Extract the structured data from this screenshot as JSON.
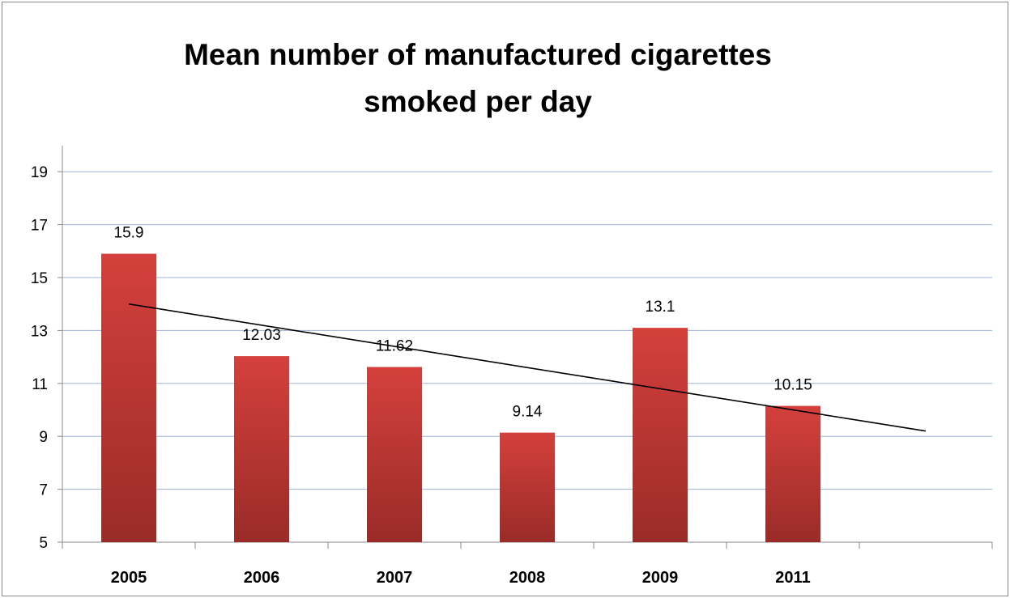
{
  "chart_data": {
    "type": "bar",
    "title_lines": [
      "Mean number of manufactured cigarettes",
      "smoked per day"
    ],
    "categories": [
      "2005",
      "2006",
      "2007",
      "2008",
      "2009",
      "2011"
    ],
    "values": [
      15.9,
      12.03,
      11.62,
      9.14,
      13.1,
      10.15
    ],
    "data_labels": [
      "15.9",
      "12.03",
      "11.62",
      "9.14",
      "13.1",
      "10.15"
    ],
    "ylim": [
      5,
      20
    ],
    "yticks": [
      5,
      7,
      9,
      11,
      13,
      15,
      17,
      19
    ],
    "trendline": {
      "type": "linear",
      "start": 14.0,
      "end": 9.2
    },
    "grid": true,
    "legend": "none",
    "colors": {
      "bar_top": "#d4403c",
      "bar_bottom": "#9a2b28",
      "grid": "#9db3d6",
      "trendline": "#000000",
      "axis": "#8a8a8a"
    }
  }
}
